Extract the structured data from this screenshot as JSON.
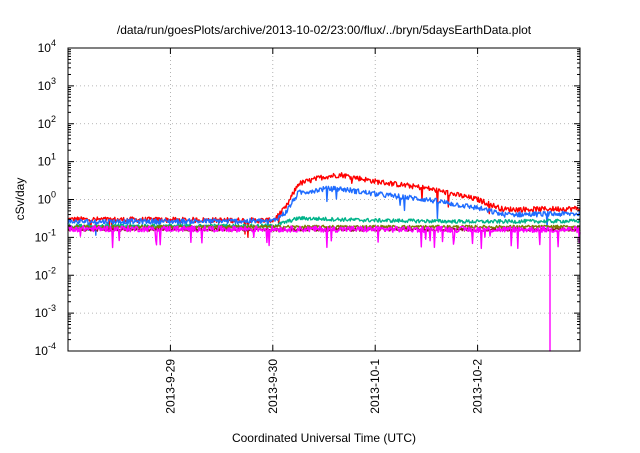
{
  "chart_data": {
    "type": "line",
    "title": "/data/run/goesPlots/archive/2013-10-02/23:00/flux/../bryn/5daysEarthData.plot",
    "xlabel": "Coordinated Universal Time (UTC)",
    "ylabel": "cSv/day",
    "y_scale": "log",
    "ylim_exp": [
      -4,
      4
    ],
    "y_tick_exponents": [
      -4,
      -3,
      -2,
      -1,
      0,
      1,
      2,
      3,
      4
    ],
    "y_tick_base": "10",
    "x_range": [
      "2013-09-28T00:00",
      "2013-10-03T00:00"
    ],
    "x_ticks": [
      {
        "label": "2013-9-29",
        "date": "2013-09-29T00:00"
      },
      {
        "label": "2013-9-30",
        "date": "2013-09-30T00:00"
      },
      {
        "label": "2013-10-1",
        "date": "2013-10-01T00:00"
      },
      {
        "label": "2013-10-2",
        "date": "2013-10-02T00:00"
      }
    ],
    "grid": true,
    "x_date_unit": "day",
    "series": [
      {
        "color": "#ff0000",
        "noise": 0.07,
        "spike_rate": 0.01,
        "points": [
          [
            "2013-09-28T00:00",
            0.3
          ],
          [
            "2013-09-30T00:00",
            0.28
          ],
          [
            "2013-09-30T03:00",
            0.6
          ],
          [
            "2013-09-30T06:00",
            2.6
          ],
          [
            "2013-09-30T12:00",
            4.0
          ],
          [
            "2013-09-30T16:00",
            4.5
          ],
          [
            "2013-10-01T00:00",
            3.0
          ],
          [
            "2013-10-01T12:00",
            2.0
          ],
          [
            "2013-10-02T00:00",
            1.0
          ],
          [
            "2013-10-02T06:00",
            0.55
          ],
          [
            "2013-10-02T12:00",
            0.55
          ],
          [
            "2013-10-03T00:00",
            0.58
          ]
        ]
      },
      {
        "color": "#1f6cff",
        "noise": 0.07,
        "spike_rate": 0.01,
        "points": [
          [
            "2013-09-28T00:00",
            0.26
          ],
          [
            "2013-09-30T00:00",
            0.27
          ],
          [
            "2013-09-30T03:00",
            0.45
          ],
          [
            "2013-09-30T06:00",
            1.5
          ],
          [
            "2013-09-30T12:00",
            1.9
          ],
          [
            "2013-09-30T16:00",
            1.9
          ],
          [
            "2013-10-01T00:00",
            1.4
          ],
          [
            "2013-10-01T12:00",
            1.0
          ],
          [
            "2013-10-02T00:00",
            0.6
          ],
          [
            "2013-10-02T06:00",
            0.4
          ],
          [
            "2013-10-03T00:00",
            0.42
          ]
        ]
      },
      {
        "color": "#00b38a",
        "noise": 0.05,
        "spike_rate": 0.0,
        "points": [
          [
            "2013-09-28T00:00",
            0.2
          ],
          [
            "2013-09-30T00:00",
            0.2
          ],
          [
            "2013-09-30T06:00",
            0.32
          ],
          [
            "2013-10-01T00:00",
            0.28
          ],
          [
            "2013-10-02T00:00",
            0.26
          ],
          [
            "2013-10-03T00:00",
            0.27
          ]
        ]
      },
      {
        "color": "#8b1a1a",
        "noise": 0.04,
        "spike_rate": 0.0,
        "points": [
          [
            "2013-09-28T00:00",
            0.16
          ],
          [
            "2013-10-03T00:00",
            0.16
          ]
        ]
      },
      {
        "color": "#7a7a00",
        "noise": 0.04,
        "spike_rate": 0.0,
        "points": [
          [
            "2013-09-28T00:00",
            0.19
          ],
          [
            "2013-10-03T00:00",
            0.19
          ]
        ]
      },
      {
        "color": "#ff00ff",
        "noise": 0.08,
        "spike_rate": 0.03,
        "points": [
          [
            "2013-09-28T00:00",
            0.17
          ],
          [
            "2013-10-03T00:00",
            0.16
          ]
        ],
        "drop": {
          "date": "2013-10-02T17:00",
          "value": 0.0001
        }
      }
    ]
  }
}
